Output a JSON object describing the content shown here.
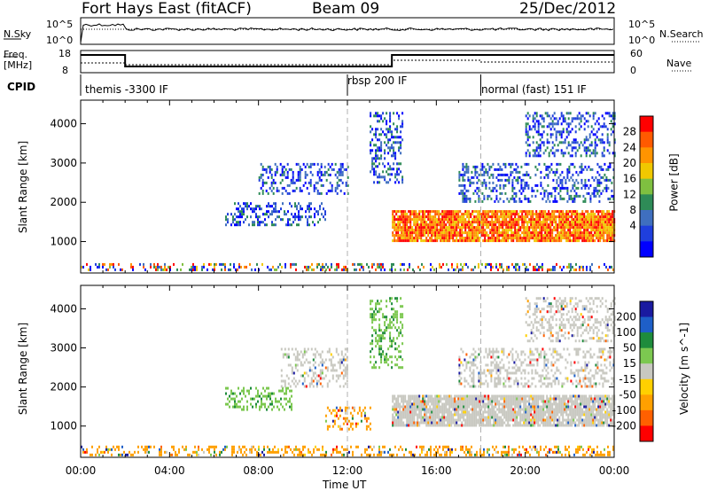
{
  "header": {
    "radar": "Fort Hays East (fitACF)",
    "beam": "Beam 09",
    "date": "25/Dec/2012"
  },
  "status_panels": {
    "nsky_label": "N.Sky",
    "nsky_ticks": [
      "10^5",
      "10^0"
    ],
    "nsearch_label": "N.Search",
    "nsearch_ticks": [
      "10^5",
      "10^0"
    ],
    "freq_label": "Freq.",
    "freq_unit": "[MHz]",
    "freq_ticks": [
      "18",
      "8"
    ],
    "nave_label": "Nave",
    "nave_ticks": [
      "60",
      "0"
    ],
    "cpid_label": "CPID",
    "cpid_segments": [
      {
        "label": "themis -3300 IF",
        "start_hour": 0
      },
      {
        "label": "rbsp 200 IF",
        "start_hour": 12
      },
      {
        "label": "normal (fast) 151 IF",
        "start_hour": 18
      }
    ]
  },
  "chart_data": [
    {
      "type": "heatmap",
      "name": "power",
      "ylabel": "Slant Range [km]",
      "y_ticks": [
        1000,
        2000,
        3000,
        4000
      ],
      "ylim": [
        200,
        4600
      ],
      "colorbar_label": "Power [dB]",
      "colorbar_ticks": [
        "28",
        "24",
        "20",
        "16",
        "12",
        "8",
        "4"
      ],
      "colors": [
        "#ff0000",
        "#ff5a00",
        "#ff9400",
        "#f0c800",
        "#7fc040",
        "#2e8b57",
        "#3f6fbf",
        "#1f3fdd",
        "#0000ff"
      ],
      "x_ticks": [
        "00:00",
        "04:00",
        "08:00",
        "12:00",
        "16:00",
        "20:00",
        "00:00"
      ],
      "xlim_hours": [
        0,
        24
      ],
      "dashed_lines_hours": [
        12,
        18
      ],
      "regions": [
        {
          "hours": [
            0.0,
            24.0
          ],
          "range_km": [
            250,
            450
          ],
          "level": "mixed"
        },
        {
          "hours": [
            6.5,
            11.0
          ],
          "range_km": [
            1400,
            2000
          ],
          "level": "low"
        },
        {
          "hours": [
            8.0,
            12.0
          ],
          "range_km": [
            2200,
            3000
          ],
          "level": "low"
        },
        {
          "hours": [
            13.0,
            14.5
          ],
          "range_km": [
            2500,
            4300
          ],
          "level": "low"
        },
        {
          "hours": [
            14.0,
            24.0
          ],
          "range_km": [
            1000,
            1800
          ],
          "level": "high"
        },
        {
          "hours": [
            17.0,
            24.0
          ],
          "range_km": [
            2000,
            3000
          ],
          "level": "low"
        },
        {
          "hours": [
            20.0,
            24.0
          ],
          "range_km": [
            3200,
            4300
          ],
          "level": "low"
        }
      ]
    },
    {
      "type": "heatmap",
      "name": "velocity",
      "ylabel": "Slant Range [km]",
      "y_ticks": [
        1000,
        2000,
        3000,
        4000
      ],
      "ylim": [
        200,
        4600
      ],
      "colorbar_label": "Velocity [m s^-1]",
      "colorbar_ticks": [
        "200",
        "100",
        "50",
        "15",
        "-15",
        "-50",
        "-100",
        "-200"
      ],
      "colors": [
        "#1a1aa0",
        "#1e5fc8",
        "#1e8c3c",
        "#7cc850",
        "#c8c8c0",
        "#ffd000",
        "#ffa000",
        "#ff6000",
        "#ff0000"
      ],
      "x_ticks": [
        "00:00",
        "04:00",
        "08:00",
        "12:00",
        "16:00",
        "20:00",
        "00:00"
      ],
      "xlabel": "Time UT",
      "xlim_hours": [
        0,
        24
      ],
      "dashed_lines_hours": [
        12,
        18
      ],
      "regions": [
        {
          "hours": [
            0.0,
            24.0
          ],
          "range_km": [
            250,
            500
          ],
          "level": "orange"
        },
        {
          "hours": [
            6.5,
            9.5
          ],
          "range_km": [
            1400,
            2000
          ],
          "level": "green"
        },
        {
          "hours": [
            9.0,
            12.0
          ],
          "range_km": [
            2000,
            3000
          ],
          "level": "grey"
        },
        {
          "hours": [
            11.0,
            13.0
          ],
          "range_km": [
            900,
            1500
          ],
          "level": "orange"
        },
        {
          "hours": [
            13.0,
            14.5
          ],
          "range_km": [
            2500,
            4300
          ],
          "level": "green"
        },
        {
          "hours": [
            14.0,
            24.0
          ],
          "range_km": [
            1000,
            1800
          ],
          "level": "grey"
        },
        {
          "hours": [
            17.0,
            24.0
          ],
          "range_km": [
            2000,
            3000
          ],
          "level": "grey"
        },
        {
          "hours": [
            20.0,
            24.0
          ],
          "range_km": [
            3200,
            4300
          ],
          "level": "grey"
        }
      ]
    }
  ]
}
